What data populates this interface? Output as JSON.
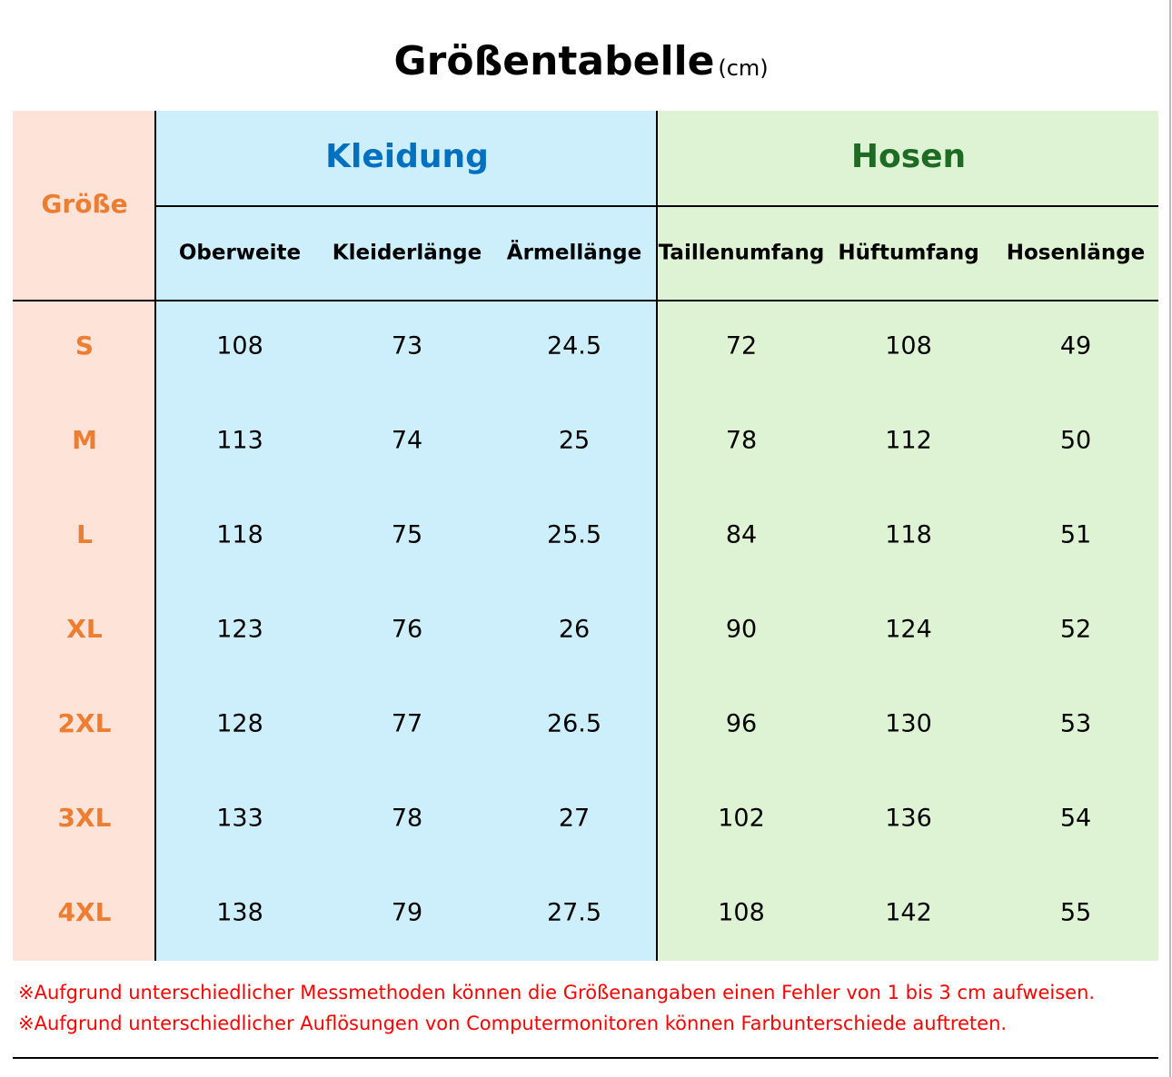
{
  "header": {
    "title": "Größentabelle",
    "unit": "(cm)"
  },
  "table": {
    "size_label": "Größe",
    "groups": [
      {
        "label": "Kleidung",
        "columns": [
          "Oberweite",
          "Kleiderlänge",
          "Ärmellänge"
        ]
      },
      {
        "label": "Hosen",
        "columns": [
          "Taillenumfang",
          "Hüftumfang",
          "Hosenlänge"
        ]
      }
    ],
    "rows": [
      {
        "size": "S",
        "values": [
          108,
          73,
          24.5,
          72,
          108,
          49
        ]
      },
      {
        "size": "M",
        "values": [
          113,
          74,
          25,
          78,
          112,
          50
        ]
      },
      {
        "size": "L",
        "values": [
          118,
          75,
          25.5,
          84,
          118,
          51
        ]
      },
      {
        "size": "XL",
        "values": [
          123,
          76,
          26,
          90,
          124,
          52
        ]
      },
      {
        "size": "2XL",
        "values": [
          128,
          77,
          26.5,
          96,
          130,
          53
        ]
      },
      {
        "size": "3XL",
        "values": [
          133,
          78,
          27,
          102,
          136,
          54
        ]
      },
      {
        "size": "4XL",
        "values": [
          138,
          79,
          27.5,
          108,
          142,
          55
        ]
      }
    ]
  },
  "notes": [
    "※Aufgrund unterschiedlicher Messmethoden können die Größenangaben einen Fehler von 1 bis 3 cm aufweisen.",
    "※Aufgrund unterschiedlicher Auflösungen von Computermonitoren können Farbunterschiede auftreten."
  ]
}
